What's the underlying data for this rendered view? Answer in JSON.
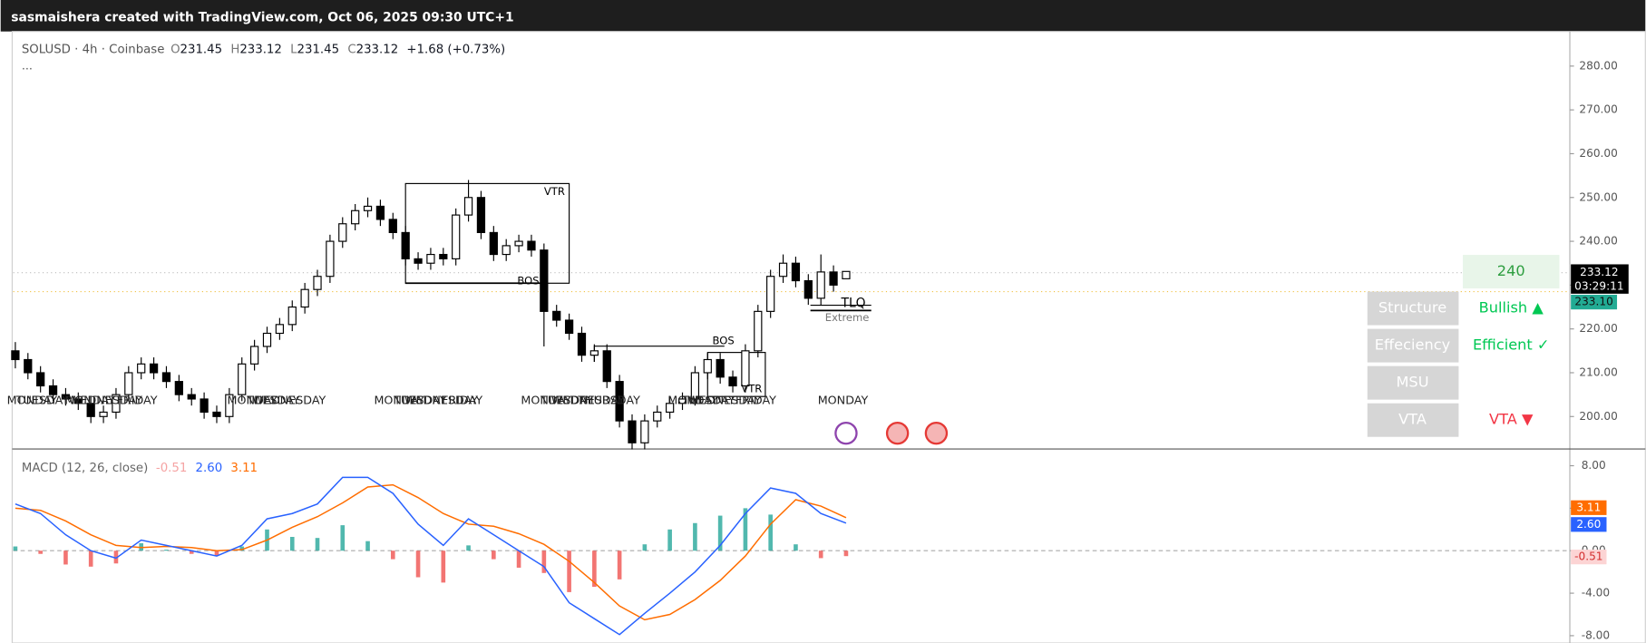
{
  "header": {
    "attribution": "sasmaishera created with TradingView.com, Oct 06, 2025 09:30 UTC+1"
  },
  "chart": {
    "type": "candlestick",
    "symbol": "SOLUSD · 4h · Coinbase",
    "ohlc": [
      {
        "label": "O",
        "value": "231.45"
      },
      {
        "label": "H",
        "value": "233.12"
      },
      {
        "label": "L",
        "value": "231.45"
      },
      {
        "label": "C",
        "value": "233.12"
      }
    ],
    "change": "+1.68 (+0.73%)",
    "more": "···",
    "ylim": [
      192.6,
      287.9
    ],
    "yticks": [
      {
        "value": 280,
        "label": "280.00"
      },
      {
        "value": 270,
        "label": "270.00"
      },
      {
        "value": 260,
        "label": "260.00"
      },
      {
        "value": 250,
        "label": "250.00"
      },
      {
        "value": 240,
        "label": "240.00"
      },
      {
        "value": 230,
        "label": "230.00"
      },
      {
        "value": 220,
        "label": "220.00"
      },
      {
        "value": 210,
        "label": "210.00"
      },
      {
        "value": 200,
        "label": "200.00"
      }
    ],
    "up_color": "#ffffff",
    "down_color": "#000000",
    "candles": [
      [
        215,
        217,
        211,
        213
      ],
      [
        213,
        214.5,
        208.5,
        210
      ],
      [
        210,
        211.5,
        205.5,
        207
      ],
      [
        207,
        208.5,
        203.5,
        205
      ],
      [
        205,
        206.5,
        202.5,
        204
      ],
      [
        204,
        205.5,
        201.5,
        203
      ],
      [
        203,
        204.5,
        198.5,
        200
      ],
      [
        200,
        202.5,
        198.5,
        201
      ],
      [
        201,
        206.5,
        199.5,
        205
      ],
      [
        205,
        211.5,
        203.5,
        210
      ],
      [
        210,
        213.5,
        208.5,
        212
      ],
      [
        212,
        213.5,
        208.5,
        210
      ],
      [
        210,
        211.5,
        206.5,
        208
      ],
      [
        208,
        209.5,
        203.5,
        205
      ],
      [
        205,
        206.5,
        202.5,
        204
      ],
      [
        204,
        205.5,
        199.5,
        201
      ],
      [
        201,
        202.5,
        198.5,
        200
      ],
      [
        200,
        206.5,
        198.5,
        205
      ],
      [
        205,
        213.5,
        203.5,
        212
      ],
      [
        212,
        217.5,
        210.5,
        216
      ],
      [
        216,
        220.5,
        214.5,
        219
      ],
      [
        219,
        222.5,
        217.5,
        221
      ],
      [
        221,
        226.5,
        219.5,
        225
      ],
      [
        225,
        230.5,
        223.5,
        229
      ],
      [
        229,
        233.5,
        227.5,
        232
      ],
      [
        232,
        241.5,
        230.5,
        240
      ],
      [
        240,
        245.5,
        238.5,
        244
      ],
      [
        244,
        248.5,
        242.5,
        247
      ],
      [
        247,
        250,
        245.5,
        248
      ],
      [
        248,
        249.5,
        243.5,
        245
      ],
      [
        245,
        246.5,
        240.5,
        242
      ],
      [
        242,
        243.5,
        234.5,
        236
      ],
      [
        236,
        237.5,
        233.5,
        235
      ],
      [
        235,
        238.5,
        233.5,
        237
      ],
      [
        237,
        238.5,
        234.5,
        236
      ],
      [
        236,
        247.5,
        234.5,
        246
      ],
      [
        246,
        254,
        244.5,
        250
      ],
      [
        250,
        251.5,
        240.5,
        242
      ],
      [
        242,
        243.5,
        235.5,
        237
      ],
      [
        237,
        240.5,
        235.5,
        239
      ],
      [
        239,
        241.5,
        237.5,
        240
      ],
      [
        240,
        241.5,
        236.5,
        238
      ],
      [
        238,
        239.5,
        216,
        224
      ],
      [
        224,
        225.5,
        220.5,
        222
      ],
      [
        222,
        223.5,
        217.5,
        219
      ],
      [
        219,
        220.5,
        212.5,
        214
      ],
      [
        214,
        216.5,
        212.5,
        215
      ],
      [
        215,
        216.5,
        206.5,
        208
      ],
      [
        208,
        209.5,
        197.5,
        199
      ],
      [
        199,
        200.5,
        192.5,
        194
      ],
      [
        194,
        200.5,
        192.5,
        199
      ],
      [
        199,
        202.5,
        197.5,
        201
      ],
      [
        201,
        204.5,
        199.5,
        203
      ],
      [
        203,
        205.5,
        201.5,
        204
      ],
      [
        204,
        211.5,
        202.5,
        210
      ],
      [
        210,
        214.5,
        208.5,
        213
      ],
      [
        213,
        214.5,
        207.5,
        209
      ],
      [
        209,
        210.5,
        205.5,
        207
      ],
      [
        207,
        216.5,
        205.5,
        215
      ],
      [
        215,
        225.5,
        213.5,
        224
      ],
      [
        224,
        233.5,
        222.5,
        232
      ],
      [
        232,
        237,
        230.5,
        235
      ],
      [
        235,
        236.5,
        229.5,
        231
      ],
      [
        231,
        232.5,
        225.5,
        227
      ],
      [
        227,
        237,
        225.5,
        233
      ],
      [
        233,
        234.5,
        228.5,
        230
      ],
      [
        231.45,
        233.12,
        231.45,
        233.12
      ]
    ],
    "price_badges": {
      "last": "233.12",
      "countdown": "03:29:11",
      "other": "233.10"
    },
    "annotations": [
      "VTR",
      "BOS",
      "BOS",
      "VTR",
      "TLQ",
      "Extreme"
    ],
    "weekday_labels": [
      "MONDAY",
      "TUESDAY",
      "MONDAY",
      "WEDNESDAY",
      "FRIDAY",
      "MONDAY",
      "TUESDAY",
      "WEDNESDAY",
      "MONDAY",
      "TUESDAY",
      "WEDNESDAY",
      "FRIDAY",
      "MONDAY",
      "TUESDAY",
      "WEDNESDAY",
      "THURSDAY",
      "MONDAY",
      "TUESDAY",
      "WEDNESDAY",
      "FRIDAY",
      "MONDAY"
    ]
  },
  "macd": {
    "title": "MACD (12, 26, close)",
    "legend_values": [
      {
        "text": "-0.51",
        "color": "#f5a3a3"
      },
      {
        "text": "2.60",
        "color": "#2962ff"
      },
      {
        "text": "3.11",
        "color": "#ff6d00"
      }
    ],
    "ylim": [
      -8.69,
      9.58
    ],
    "yticks": [
      {
        "value": 8,
        "label": "8.00"
      },
      {
        "value": 4,
        "label": "4.00"
      },
      {
        "value": 0,
        "label": "0.00"
      },
      {
        "value": -4,
        "label": "-4.00"
      },
      {
        "value": -8,
        "label": "-8.00"
      }
    ],
    "macd_line": {
      "color": "#2962ff",
      "values": [
        4.4,
        3.5,
        1.5,
        0,
        -0.7,
        1,
        0.5,
        0,
        -0.5,
        0.5,
        3,
        3.5,
        4.4,
        6.9,
        6.9,
        5.4,
        2.5,
        0.5,
        3,
        1.5,
        0,
        -1.5,
        -4.9,
        -6.4,
        -7.9,
        -5.9,
        -4,
        -2,
        0.5,
        3.5,
        5.9,
        5.4,
        3.5,
        2.6
      ]
    },
    "signal_line": {
      "color": "#ff6d00",
      "values": [
        4.0,
        3.8,
        2.8,
        1.5,
        0.5,
        0.3,
        0.4,
        0.3,
        0,
        0.1,
        1.0,
        2.2,
        3.2,
        4.5,
        6.0,
        6.2,
        5.0,
        3.5,
        2.5,
        2.3,
        1.6,
        0.6,
        -1.0,
        -3.0,
        -5.2,
        -6.5,
        -6.0,
        -4.6,
        -2.8,
        -0.5,
        2.5,
        4.8,
        4.2,
        3.11
      ]
    },
    "histogram": {
      "up_color": "#26a69a",
      "down_color": "#ef5350",
      "values": [
        0.4,
        -0.3,
        -1.3,
        -1.5,
        -1.2,
        0.7,
        0.1,
        -0.3,
        -0.5,
        0.4,
        2.0,
        1.3,
        1.2,
        2.4,
        0.9,
        -0.8,
        -2.5,
        -3.0,
        0.5,
        -0.8,
        -1.6,
        -2.1,
        -3.9,
        -3.4,
        -2.7,
        0.6,
        2.0,
        2.6,
        3.3,
        4.0,
        3.4,
        0.6,
        -0.7,
        -0.51
      ]
    },
    "badges": [
      {
        "text": "3.11",
        "color": "#ff6d00"
      },
      {
        "text": "2.60",
        "color": "#2962ff"
      },
      {
        "text": "-0.51",
        "color": "#fcd4d4"
      }
    ]
  },
  "table": {
    "level": "240",
    "rows": [
      [
        "Structure",
        "Bullish ▲"
      ],
      [
        "Effeciency",
        "Efficient ✓"
      ],
      [
        "MSU"
      ],
      [
        "VTA",
        "VTA ▼"
      ]
    ]
  }
}
